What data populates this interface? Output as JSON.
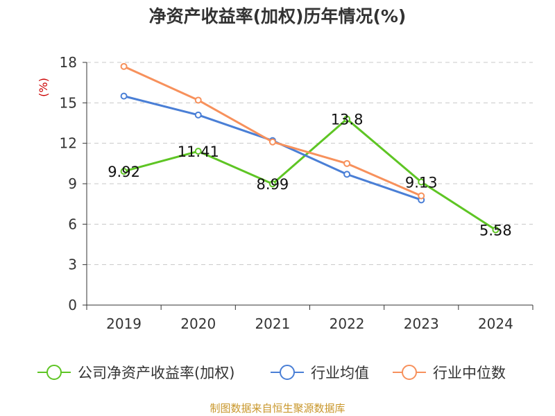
{
  "chart_data": {
    "type": "line",
    "title": "净资产收益率(加权)历年情况(%)",
    "ylabel": "(%)",
    "xlabel": "",
    "categories": [
      "2019",
      "2020",
      "2021",
      "2022",
      "2023",
      "2024"
    ],
    "ylim": [
      0,
      18
    ],
    "yticks": [
      0,
      3,
      6,
      9,
      12,
      15,
      18
    ],
    "grid": true,
    "legend_position": "bottom",
    "series": [
      {
        "name": "公司净资产收益率(加权)",
        "color": "#5ec524",
        "values": [
          9.92,
          11.41,
          8.99,
          13.8,
          9.13,
          5.58
        ],
        "labels": [
          "9.92",
          "11.41",
          "8.99",
          "13.8",
          "9.13",
          "5.58"
        ]
      },
      {
        "name": "行业均值",
        "color": "#4a7fd6",
        "values": [
          15.5,
          14.1,
          12.2,
          9.7,
          7.8,
          null
        ]
      },
      {
        "name": "行业中位数",
        "color": "#f7915c",
        "values": [
          17.7,
          15.2,
          12.1,
          10.5,
          8.1,
          null
        ]
      }
    ]
  },
  "footer": {
    "source": "制图数据来自恒生聚源数据库"
  }
}
